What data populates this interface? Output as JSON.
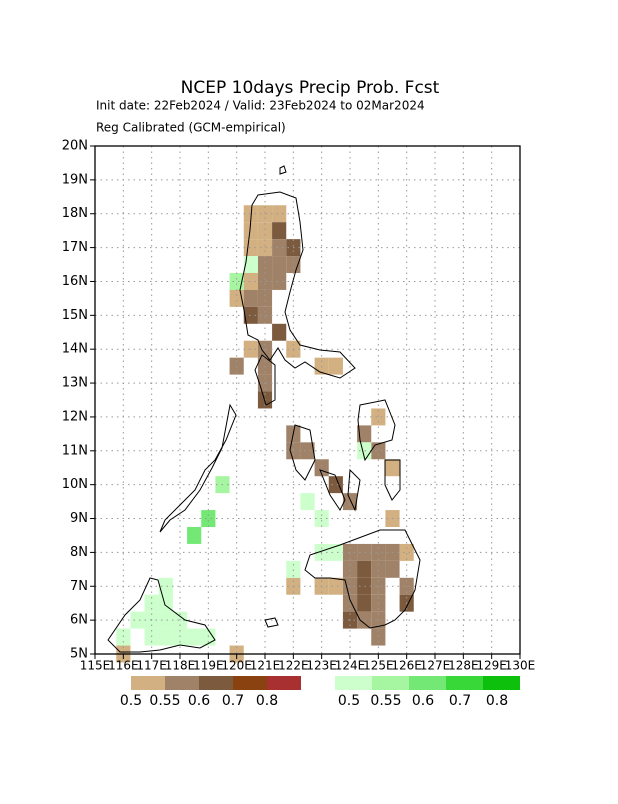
{
  "chart_data": {
    "type": "grid-map",
    "title": "NCEP 10days Precip Prob. Fcst",
    "subtitle": "Init date: 22Feb2024 / Valid: 23Feb2024 to 02Mar2024",
    "method": "Reg Calibrated (GCM-empirical)",
    "xlim": [
      115,
      130
    ],
    "ylim": [
      5,
      20
    ],
    "cell_size": 0.5,
    "xticks": [
      {
        "value": 115,
        "label": "115E"
      },
      {
        "value": 116,
        "label": "116E"
      },
      {
        "value": 117,
        "label": "117E"
      },
      {
        "value": 118,
        "label": "118E"
      },
      {
        "value": 119,
        "label": "119E"
      },
      {
        "value": 120,
        "label": "120E"
      },
      {
        "value": 121,
        "label": "121E"
      },
      {
        "value": 122,
        "label": "122E"
      },
      {
        "value": 123,
        "label": "123E"
      },
      {
        "value": 124,
        "label": "124E"
      },
      {
        "value": 125,
        "label": "125E"
      },
      {
        "value": 126,
        "label": "126E"
      },
      {
        "value": 127,
        "label": "127E"
      },
      {
        "value": 128,
        "label": "128E"
      },
      {
        "value": 129,
        "label": "129E"
      },
      {
        "value": 130,
        "label": "130E"
      }
    ],
    "yticks": [
      {
        "value": 5,
        "label": "5N"
      },
      {
        "value": 6,
        "label": "6N"
      },
      {
        "value": 7,
        "label": "7N"
      },
      {
        "value": 8,
        "label": "8N"
      },
      {
        "value": 9,
        "label": "9N"
      },
      {
        "value": 10,
        "label": "10N"
      },
      {
        "value": 11,
        "label": "11N"
      },
      {
        "value": 12,
        "label": "12N"
      },
      {
        "value": 13,
        "label": "13N"
      },
      {
        "value": 14,
        "label": "14N"
      },
      {
        "value": 15,
        "label": "15N"
      },
      {
        "value": 16,
        "label": "16N"
      },
      {
        "value": 17,
        "label": "17N"
      },
      {
        "value": 18,
        "label": "18N"
      },
      {
        "value": 19,
        "label": "19N"
      },
      {
        "value": 20,
        "label": "20N"
      }
    ],
    "grid": true,
    "levels": [
      0.5,
      0.55,
      0.6,
      0.7,
      0.8
    ],
    "dry_colors": [
      "#d2b081",
      "#a08268",
      "#7c5a3e",
      "#8a4210",
      "#a83030"
    ],
    "wet_colors": [
      "#ccffcc",
      "#a6f5a0",
      "#74e874",
      "#38d838",
      "#0cc00c"
    ],
    "dry_cells": [
      [
        120.5,
        18,
        0.5
      ],
      [
        121,
        18,
        0.5
      ],
      [
        121.5,
        18,
        0.5
      ],
      [
        120.5,
        17.5,
        0.5
      ],
      [
        121,
        17.5,
        0.5
      ],
      [
        121.5,
        17.5,
        0.6
      ],
      [
        120.5,
        17,
        0.5
      ],
      [
        121,
        17,
        0.5
      ],
      [
        121.5,
        17,
        0.55
      ],
      [
        122,
        17,
        0.6
      ],
      [
        121,
        16.5,
        0.55
      ],
      [
        121.5,
        16.5,
        0.55
      ],
      [
        122,
        16.5,
        0.55
      ],
      [
        120.5,
        16,
        0.5
      ],
      [
        121,
        16,
        0.55
      ],
      [
        121.5,
        16,
        0.55
      ],
      [
        120,
        15.5,
        0.5
      ],
      [
        120.5,
        15.5,
        0.55
      ],
      [
        121,
        15.5,
        0.55
      ],
      [
        120.5,
        15,
        0.6
      ],
      [
        121,
        15,
        0.55
      ],
      [
        121.5,
        14.5,
        0.6
      ],
      [
        120.5,
        14,
        0.5
      ],
      [
        121,
        14,
        0.55
      ],
      [
        122,
        14,
        0.5
      ],
      [
        120,
        13.5,
        0.55
      ],
      [
        121,
        13.5,
        0.55
      ],
      [
        121,
        13,
        0.55
      ],
      [
        121,
        12.5,
        0.6
      ],
      [
        123,
        13.5,
        0.5
      ],
      [
        123.5,
        13.5,
        0.5
      ],
      [
        122,
        11.5,
        0.55
      ],
      [
        122,
        11,
        0.55
      ],
      [
        122.5,
        11,
        0.55
      ],
      [
        123,
        10.5,
        0.55
      ],
      [
        123.5,
        10,
        0.6
      ],
      [
        124,
        9.5,
        0.55
      ],
      [
        125,
        12,
        0.5
      ],
      [
        124.5,
        11.5,
        0.55
      ],
      [
        125,
        11,
        0.55
      ],
      [
        125.5,
        10.5,
        0.5
      ],
      [
        125.5,
        9,
        0.5
      ],
      [
        124,
        8,
        0.55
      ],
      [
        124.5,
        8,
        0.55
      ],
      [
        125,
        8,
        0.55
      ],
      [
        125.5,
        8,
        0.55
      ],
      [
        126,
        8,
        0.5
      ],
      [
        124,
        7.5,
        0.55
      ],
      [
        124.5,
        7.5,
        0.6
      ],
      [
        125,
        7.5,
        0.55
      ],
      [
        125.5,
        7.5,
        0.55
      ],
      [
        124,
        7,
        0.55
      ],
      [
        124.5,
        7,
        0.6
      ],
      [
        125,
        7,
        0.55
      ],
      [
        126,
        7,
        0.55
      ],
      [
        124,
        6.5,
        0.55
      ],
      [
        124.5,
        6.5,
        0.6
      ],
      [
        125,
        6.5,
        0.55
      ],
      [
        126,
        6.5,
        0.6
      ],
      [
        124,
        6,
        0.6
      ],
      [
        124.5,
        6,
        0.55
      ],
      [
        125,
        6,
        0.55
      ],
      [
        125,
        5.5,
        0.55
      ],
      [
        123,
        7,
        0.5
      ],
      [
        123.5,
        7,
        0.5
      ],
      [
        122,
        7,
        0.5
      ],
      [
        116,
        5,
        0.5
      ],
      [
        120,
        5,
        0.5
      ]
    ],
    "wet_cells": [
      [
        120.5,
        16.5,
        0.5
      ],
      [
        120,
        16,
        0.55
      ],
      [
        122.5,
        9.5,
        0.5
      ],
      [
        123,
        9,
        0.5
      ],
      [
        123,
        8,
        0.5
      ],
      [
        123.5,
        8,
        0.5
      ],
      [
        122,
        7.5,
        0.5
      ],
      [
        124.5,
        11,
        0.5
      ],
      [
        119.5,
        10,
        0.55
      ],
      [
        119,
        9,
        0.6
      ],
      [
        118.5,
        8.5,
        0.6
      ],
      [
        117.5,
        7,
        0.5
      ],
      [
        117,
        6.5,
        0.5
      ],
      [
        117.5,
        6.5,
        0.5
      ],
      [
        116.5,
        6,
        0.5
      ],
      [
        117,
        6,
        0.5
      ],
      [
        117.5,
        6,
        0.5
      ],
      [
        118,
        6,
        0.5
      ],
      [
        117,
        5.5,
        0.5
      ],
      [
        117.5,
        5.5,
        0.5
      ],
      [
        118,
        5.5,
        0.5
      ],
      [
        118.5,
        5.5,
        0.5
      ],
      [
        119,
        5.5,
        0.5
      ],
      [
        116,
        5.5,
        0.5
      ]
    ]
  }
}
